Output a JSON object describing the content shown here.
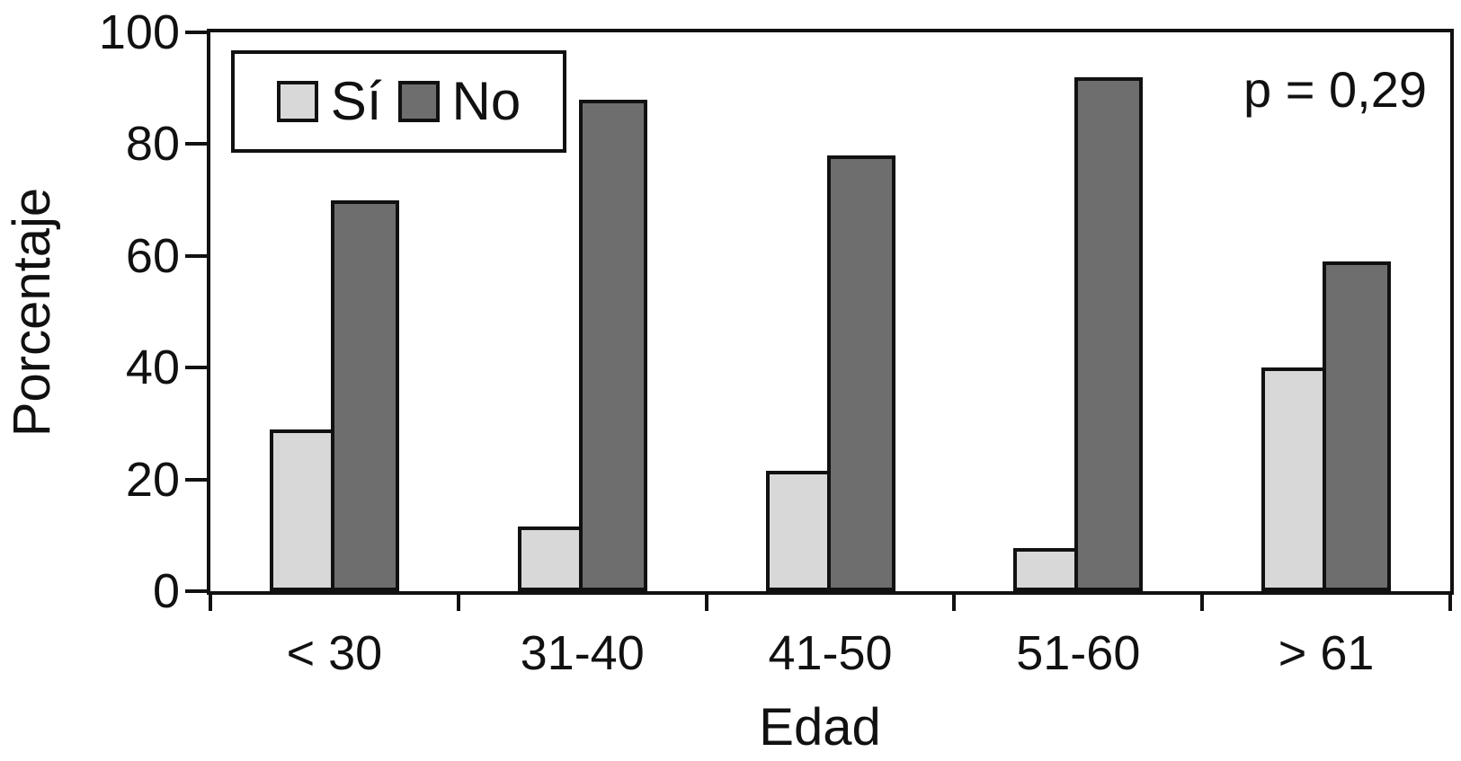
{
  "figure": {
    "y_axis_title": "Porcentaje",
    "x_axis_title": "Edad",
    "annotation": "p = 0,29"
  },
  "chart_data": {
    "type": "bar",
    "title": "",
    "xlabel": "Edad",
    "ylabel": "Porcentaje",
    "categories": [
      "< 30",
      "31-40",
      "41-50",
      "51-60",
      "> 61"
    ],
    "series": [
      {
        "name": "Sí",
        "color": "#d8d8d8",
        "values": [
          29,
          11.5,
          21.5,
          7.7,
          40
        ]
      },
      {
        "name": "No",
        "color": "#6e6e6e",
        "values": [
          70,
          88,
          78,
          92,
          59
        ]
      }
    ],
    "ylim": [
      0,
      100
    ],
    "yticks": [
      0,
      20,
      40,
      60,
      80,
      100
    ],
    "grid": false,
    "legend_position": "top-left",
    "annotation": "p = 0,29",
    "bar_border_color": "#111111",
    "axis_color": "#111111"
  }
}
